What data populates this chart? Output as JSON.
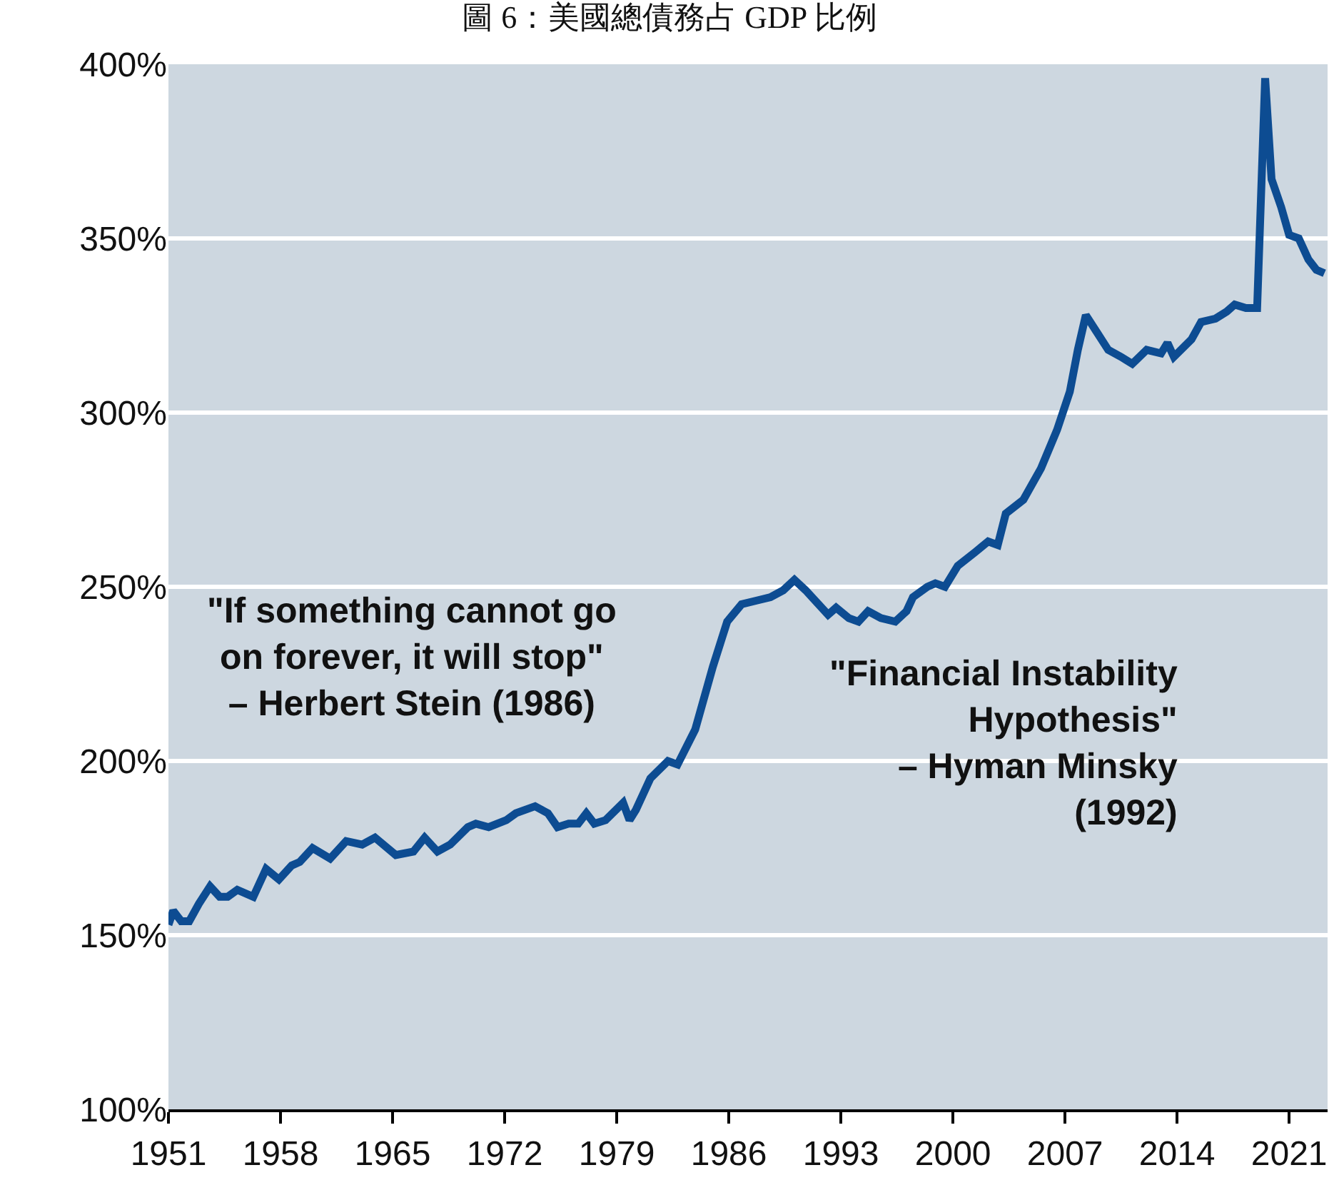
{
  "chart_data": {
    "type": "line",
    "title": "圖 6：美國總債務占 GDP 比例",
    "x": [
      1951,
      1951.3,
      1951.8,
      1952.3,
      1952.9,
      1953.6,
      1954.2,
      1954.7,
      1955.3,
      1956.3,
      1957.1,
      1957.9,
      1958.7,
      1959.2,
      1960,
      1961.1,
      1962.1,
      1963.1,
      1963.9,
      1965.2,
      1966.3,
      1967,
      1967.8,
      1968.6,
      1969.7,
      1970.2,
      1971,
      1972.1,
      1972.7,
      1973.9,
      1974.7,
      1975.3,
      1976,
      1976.6,
      1977.1,
      1977.6,
      1978.3,
      1979.4,
      1979.8,
      1980.2,
      1981.1,
      1982.2,
      1982.8,
      1983.9,
      1985,
      1985.9,
      1986.8,
      1987.7,
      1988.6,
      1989.4,
      1990.1,
      1990.8,
      1991.4,
      1992.2,
      1992.7,
      1993.5,
      1994.1,
      1994.7,
      1995.5,
      1996.4,
      1997.1,
      1997.5,
      1998.4,
      1998.9,
      1999.5,
      2000.3,
      2001.4,
      2002.2,
      2002.8,
      2003.3,
      2004.4,
      2005.5,
      2006.5,
      2007.3,
      2007.8,
      2008.3,
      2009,
      2009.7,
      2010.5,
      2011.2,
      2012.1,
      2013,
      2013.4,
      2013.8,
      2014.9,
      2015.5,
      2016.4,
      2017.1,
      2017.6,
      2018.3,
      2019,
      2019.5,
      2019.9,
      2020.5,
      2021,
      2021.6,
      2022.2,
      2022.7,
      2023.2
    ],
    "series": [
      {
        "color": "#0d4c92",
        "values": [
          153,
          157,
          154,
          154,
          159,
          164,
          161,
          161,
          163,
          161,
          169,
          166,
          170,
          171,
          175,
          172,
          177,
          176,
          178,
          173,
          174,
          178,
          174,
          176,
          181,
          182,
          181,
          183,
          185,
          187,
          185,
          181,
          182,
          182,
          185,
          182,
          183,
          188,
          183,
          186,
          195,
          200,
          199,
          209,
          227,
          240,
          245,
          246,
          247,
          249,
          252,
          249,
          246,
          242,
          244,
          241,
          240,
          243,
          241,
          240,
          243,
          247,
          250,
          251,
          250,
          256,
          260,
          263,
          262,
          271,
          275,
          284,
          295,
          306,
          318,
          328,
          323,
          318,
          316,
          314,
          318,
          317,
          320,
          316,
          321,
          326,
          327,
          329,
          331,
          330,
          330,
          396,
          367,
          359,
          351,
          350,
          344,
          341,
          340
        ]
      }
    ],
    "xlim": [
      1951,
      2023.4
    ],
    "xticks": [
      1951,
      1958,
      1965,
      1972,
      1979,
      1986,
      1993,
      2000,
      2007,
      2014,
      2021
    ],
    "ylim": [
      100,
      400
    ],
    "yticks": [
      {
        "value": 100,
        "label": "100%"
      },
      {
        "value": 150,
        "label": "150%"
      },
      {
        "value": 200,
        "label": "200%"
      },
      {
        "value": 250,
        "label": "250%"
      },
      {
        "value": 300,
        "label": "300%"
      },
      {
        "value": 350,
        "label": "350%"
      },
      {
        "value": 400,
        "label": "400%"
      }
    ],
    "grid": "y",
    "marker": "none",
    "line_style": "solid",
    "annotations": [
      "\"If something cannot go\non forever, it will stop\"\n– Herbert Stein (1986)",
      "\"Financial Instability\nHypothesis\"\n– Hyman Minsky\n(1992)"
    ]
  }
}
